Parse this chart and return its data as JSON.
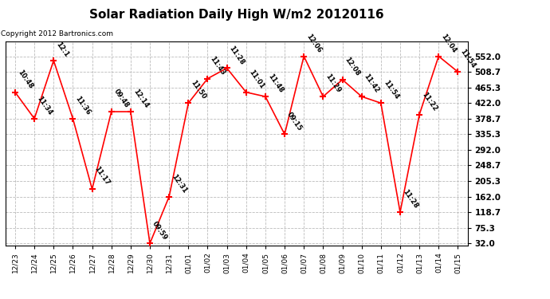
{
  "title": "Solar Radiation Daily High W/m2 20120116",
  "copyright": "Copyright 2012 Bartronics.com",
  "dates": [
    "12/23",
    "12/24",
    "12/25",
    "12/26",
    "12/27",
    "12/28",
    "12/29",
    "12/30",
    "12/31",
    "01/01",
    "01/02",
    "01/03",
    "01/04",
    "01/05",
    "01/06",
    "01/07",
    "01/08",
    "01/09",
    "01/10",
    "01/11",
    "01/12",
    "01/13",
    "01/14",
    "01/15"
  ],
  "values": [
    452.0,
    378.7,
    540.0,
    378.7,
    183.0,
    398.0,
    398.0,
    32.0,
    162.0,
    422.0,
    490.0,
    519.0,
    452.0,
    440.0,
    335.3,
    552.0,
    440.0,
    487.0,
    440.0,
    422.0,
    118.7,
    390.0,
    552.0,
    508.7
  ],
  "labels": [
    "10:48",
    "11:34",
    "12:1",
    "11:36",
    "11:17",
    "09:48",
    "12:14",
    "09:59",
    "12:31",
    "11:50",
    "11:43",
    "11:28",
    "11:01",
    "11:48",
    "09:15",
    "12:06",
    "11:29",
    "12:08",
    "11:42",
    "11:54",
    "11:28",
    "11:22",
    "12:04",
    "11:54"
  ],
  "line_color": "#ff0000",
  "marker_color": "#ff0000",
  "bg_color": "#ffffff",
  "grid_color": "#bbbbbb",
  "title_fontsize": 11,
  "copyright_fontsize": 6.5,
  "label_fontsize": 6,
  "yticks": [
    32.0,
    75.3,
    118.7,
    162.0,
    205.3,
    248.7,
    292.0,
    335.3,
    378.7,
    422.0,
    465.3,
    508.7,
    552.0
  ],
  "ymin": 32.0,
  "ymax": 552.0
}
